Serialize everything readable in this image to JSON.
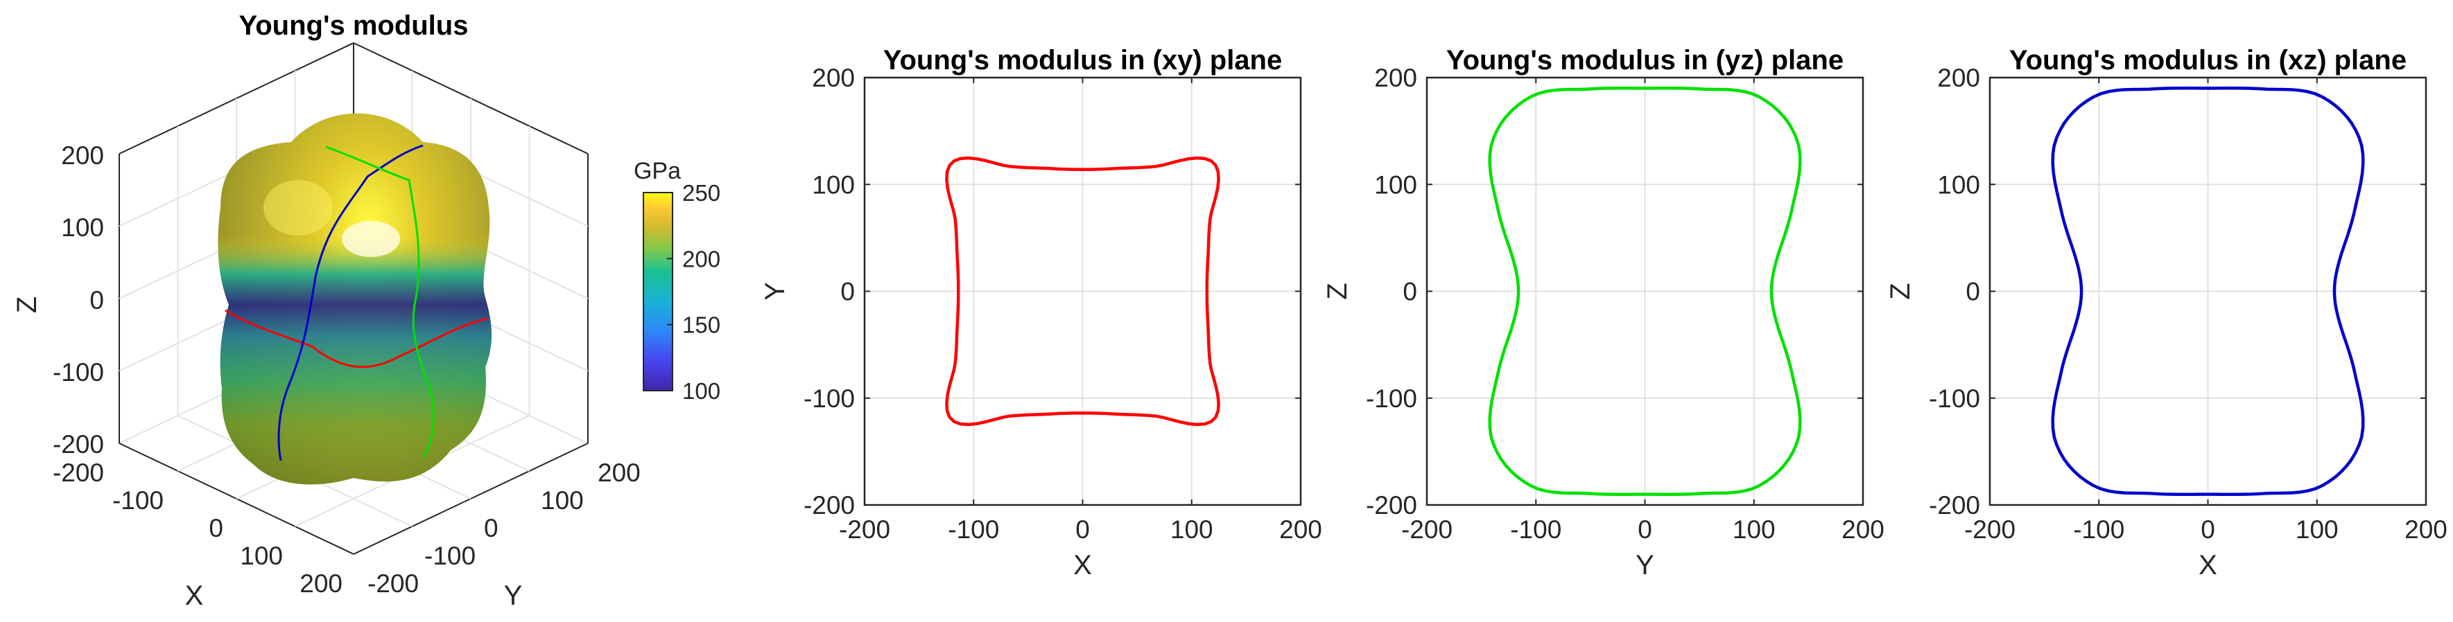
{
  "chart_data": [
    {
      "type": "surface3d",
      "title": "Young's modulus",
      "xlabel": "X",
      "ylabel": "Y",
      "zlabel": "Z",
      "xlim": [
        -200,
        200
      ],
      "ylim": [
        -200,
        200
      ],
      "zlim": [
        -200,
        200
      ],
      "x_ticks": [
        "-200",
        "-100",
        "0",
        "100",
        "200"
      ],
      "y_ticks": [
        "-200",
        "-100",
        "0",
        "100",
        "200"
      ],
      "z_ticks": [
        "-200",
        "-100",
        "0",
        "100",
        "200"
      ],
      "grid": true,
      "colorbar": {
        "label": "GPa",
        "min": 100,
        "max": 250,
        "ticks": [
          "100",
          "150",
          "200",
          "250"
        ],
        "colormap": "parula"
      },
      "curves": [
        {
          "plane": "xy",
          "color": "#ff0000"
        },
        {
          "plane": "yz",
          "color": "#00e000"
        },
        {
          "plane": "xz",
          "color": "#0000cc"
        }
      ]
    },
    {
      "type": "line",
      "title": "Young's modulus in (xy) plane",
      "xlabel": "X",
      "ylabel": "Y",
      "xlim": [
        -200,
        200
      ],
      "ylim": [
        -200,
        200
      ],
      "x_ticks": [
        "-200",
        "-100",
        "0",
        "100",
        "200"
      ],
      "y_ticks": [
        "-200",
        "-100",
        "0",
        "100",
        "200"
      ],
      "grid": true,
      "color": "#ff0000",
      "polar_r_vs_angle_deg": {
        "angles": [
          0,
          15,
          30,
          45,
          60,
          75,
          90,
          105,
          120,
          135,
          150,
          165,
          180,
          195,
          210,
          225,
          240,
          255,
          270,
          285,
          300,
          315,
          330,
          345
        ],
        "r": [
          114,
          119,
          135,
          170,
          135,
          119,
          114,
          119,
          135,
          170,
          135,
          119,
          114,
          119,
          135,
          170,
          135,
          119,
          114,
          119,
          135,
          170,
          135,
          119
        ]
      }
    },
    {
      "type": "line",
      "title": "Young's modulus in (yz) plane",
      "xlabel": "Y",
      "ylabel": "Z",
      "xlim": [
        -200,
        200
      ],
      "ylim": [
        -200,
        200
      ],
      "x_ticks": [
        "-200",
        "-100",
        "0",
        "100",
        "200"
      ],
      "y_ticks": [
        "-200",
        "-100",
        "0",
        "100",
        "200"
      ],
      "grid": true,
      "color": "#00e000",
      "polar_r_vs_angle_deg": {
        "angles": [
          0,
          15,
          30,
          45,
          60,
          75,
          90,
          105,
          120,
          135,
          150,
          165,
          180,
          195,
          210,
          225,
          240,
          255,
          270,
          285,
          300,
          315,
          330,
          345
        ],
        "r": [
          116,
          126,
          156,
          198,
          210,
          196,
          190,
          196,
          210,
          198,
          156,
          126,
          116,
          126,
          156,
          198,
          210,
          196,
          190,
          196,
          210,
          198,
          156,
          126
        ]
      }
    },
    {
      "type": "line",
      "title": "Young's modulus in (xz) plane",
      "xlabel": "X",
      "ylabel": "Z",
      "xlim": [
        -200,
        200
      ],
      "ylim": [
        -200,
        200
      ],
      "x_ticks": [
        "-200",
        "-100",
        "0",
        "100",
        "200"
      ],
      "y_ticks": [
        "-200",
        "-100",
        "0",
        "100",
        "200"
      ],
      "grid": true,
      "color": "#0000cc",
      "polar_r_vs_angle_deg": {
        "angles": [
          0,
          15,
          30,
          45,
          60,
          75,
          90,
          105,
          120,
          135,
          150,
          165,
          180,
          195,
          210,
          225,
          240,
          255,
          270,
          285,
          300,
          315,
          330,
          345
        ],
        "r": [
          116,
          126,
          156,
          198,
          210,
          196,
          190,
          196,
          210,
          198,
          156,
          126,
          116,
          126,
          156,
          198,
          210,
          196,
          190,
          196,
          210,
          198,
          156,
          126
        ]
      }
    }
  ]
}
